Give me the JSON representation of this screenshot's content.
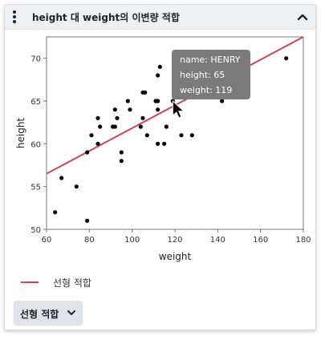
{
  "header": {
    "title": "height 대 weight의 이변량 적합"
  },
  "chart_data": {
    "type": "scatter",
    "xlabel": "weight",
    "ylabel": "height",
    "xlim": [
      60,
      180
    ],
    "ylim": [
      50,
      72.5
    ],
    "xticks": [
      "60",
      "80",
      "100",
      "120",
      "140",
      "160",
      "180"
    ],
    "yticks": [
      "50",
      "55",
      "60",
      "65",
      "70"
    ],
    "grid": false,
    "fit_line": {
      "name": "선형 적합",
      "color": "#cc4455",
      "start": [
        60,
        56.5
      ],
      "end": [
        180,
        72.5
      ]
    },
    "points": [
      {
        "x": 64,
        "y": 52
      },
      {
        "x": 67,
        "y": 56
      },
      {
        "x": 74,
        "y": 55
      },
      {
        "x": 79,
        "y": 51
      },
      {
        "x": 79,
        "y": 59
      },
      {
        "x": 81,
        "y": 61
      },
      {
        "x": 84,
        "y": 60
      },
      {
        "x": 84,
        "y": 63
      },
      {
        "x": 85,
        "y": 62
      },
      {
        "x": 91,
        "y": 62
      },
      {
        "x": 92,
        "y": 62
      },
      {
        "x": 92,
        "y": 64
      },
      {
        "x": 93,
        "y": 63
      },
      {
        "x": 95,
        "y": 58
      },
      {
        "x": 95,
        "y": 59
      },
      {
        "x": 98,
        "y": 65
      },
      {
        "x": 99,
        "y": 64
      },
      {
        "x": 104,
        "y": 62
      },
      {
        "x": 105,
        "y": 63
      },
      {
        "x": 105,
        "y": 66
      },
      {
        "x": 106,
        "y": 66
      },
      {
        "x": 107,
        "y": 61
      },
      {
        "x": 111,
        "y": 65
      },
      {
        "x": 112,
        "y": 60
      },
      {
        "x": 112,
        "y": 64
      },
      {
        "x": 112,
        "y": 65
      },
      {
        "x": 112,
        "y": 68
      },
      {
        "x": 113,
        "y": 69
      },
      {
        "x": 115,
        "y": 60
      },
      {
        "x": 116,
        "y": 62
      },
      {
        "x": 119,
        "y": 65
      },
      {
        "x": 123,
        "y": 61
      },
      {
        "x": 128,
        "y": 61
      },
      {
        "x": 142,
        "y": 65
      },
      {
        "x": 172,
        "y": 70
      }
    ],
    "legend": {
      "placement": "bottom-left",
      "entries": [
        {
          "name": "선형 적합",
          "color": "#cc4455"
        }
      ]
    },
    "tooltip": {
      "name_line": "name: HENRY",
      "height_line": "height: 65",
      "weight_line": "weight: 119",
      "point": {
        "x": 119,
        "y": 65
      }
    }
  },
  "controls": {
    "fit_dropdown_label": "선형 적합"
  },
  "colors": {
    "fit_line": "#cc4455",
    "tooltip_bg": "#7a7a7a",
    "header_bg": "#eef1f4",
    "dropdown_bg": "#dfe4ea"
  }
}
